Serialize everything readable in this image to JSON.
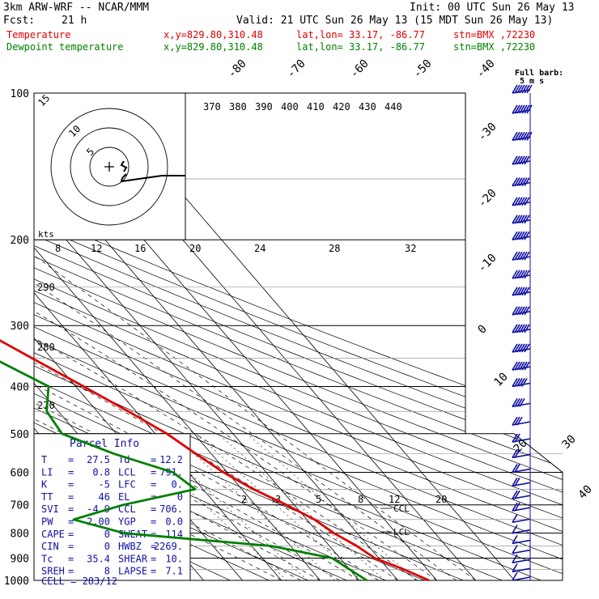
{
  "header": {
    "model": "3km ARW-WRF -- NCAR/MMM",
    "init": "Init: 00 UTC Sun 26 May 13",
    "fcst_label": "Fcst:",
    "fcst_value": "21 h",
    "valid": "Valid: 21 UTC Sun 26 May 13 (15 MDT Sun 26 May 13)",
    "temp_label": "Temperature",
    "dew_label": "Dewpoint temperature",
    "xy": "x,y=829.80,310.48",
    "latlon": "lat,lon= 33.17, -86.77",
    "stn": "stn=BMX ,72230"
  },
  "colors": {
    "temperature": "#e00000",
    "dewpoint": "#008000",
    "wind": "#1010a0"
  },
  "full_barb_text": "Full barb:",
  "full_barb_value": "5 m s",
  "hodograph": {
    "ring_labels": [
      "5",
      "10",
      "15"
    ],
    "units": "kts",
    "center_icon": "plus-icon"
  },
  "parcel_info": {
    "title": "Parcel Info",
    "rows": [
      {
        "k1": "T",
        "v1": "27.5",
        "k2": "Td",
        "v2": "12.2"
      },
      {
        "k1": "LI",
        "v1": "0.8",
        "k2": "LCL",
        "v2": "791."
      },
      {
        "k1": "K",
        "v1": "-5",
        "k2": "LFC",
        "v2": "0."
      },
      {
        "k1": "TT",
        "v1": "46",
        "k2": "EL",
        "v2": "0"
      },
      {
        "k1": "SVI",
        "v1": "-4.9",
        "k2": "CCL",
        "v2": "706."
      },
      {
        "k1": "PW",
        "v1": "2.00",
        "k2": "YGP",
        "v2": "0.0"
      },
      {
        "k1": "CAPE",
        "v1": "0",
        "k2": "SWEAT",
        "v2": "114"
      },
      {
        "k1": "CIN",
        "v1": "0",
        "k2": "HWBZ",
        "v2": "2269."
      },
      {
        "k1": "Tc",
        "v1": "35.4",
        "k2": "SHEAR",
        "v2": "10."
      },
      {
        "k1": "SREH",
        "v1": "8",
        "k2": "LAPSE",
        "v2": "7.1"
      }
    ],
    "cell": "CELL = 283/12"
  },
  "annotations": {
    "ccl": "CCL",
    "lcl": "LCL"
  },
  "chart_data": {
    "type": "skew-t",
    "title": "",
    "pressure_levels": [
      100,
      200,
      300,
      400,
      500,
      600,
      700,
      800,
      900,
      1000
    ],
    "ylim": [
      1000,
      100
    ],
    "y_scale": "log",
    "isotherm_labels": [
      "-80",
      "-70",
      "-60",
      "-50",
      "-40",
      "-30",
      "-20",
      "-10",
      "0",
      "10",
      "20",
      "30",
      "40"
    ],
    "theta_labels": [
      "370",
      "380",
      "390",
      "400",
      "410",
      "420",
      "430",
      "440"
    ],
    "theta_left_labels": [
      "290",
      "280",
      "270"
    ],
    "mixing_ratio_labels": [
      "8",
      "12",
      "16",
      "20",
      "24",
      "28",
      "32"
    ],
    "mixing_ratio_lower_labels": [
      "2",
      "3",
      "5",
      "8",
      "12",
      "20"
    ],
    "series": [
      {
        "name": "Temperature",
        "pressure": [
          1000,
          950,
          900,
          850,
          800,
          750,
          700,
          650,
          600,
          550,
          500,
          450,
          400,
          350,
          300,
          250,
          200,
          180,
          150,
          125,
          100
        ],
        "values": [
          28,
          24,
          19,
          17,
          14,
          12,
          8,
          3,
          -1,
          -4,
          -7,
          -12,
          -18,
          -25,
          -33,
          -43,
          -54,
          -58,
          -60,
          -61,
          -63
        ]
      },
      {
        "name": "Dewpoint temperature",
        "pressure": [
          1000,
          950,
          900,
          850,
          800,
          750,
          700,
          650,
          600,
          550,
          500,
          450,
          400,
          350,
          300,
          250,
          200,
          180,
          150,
          125,
          100
        ],
        "values": [
          12,
          10,
          8,
          -5,
          -40,
          -50,
          -34,
          -12,
          -14,
          -25,
          -34,
          -33,
          -27,
          -35,
          -45,
          -55,
          -64,
          -70,
          -78,
          -85,
          -92
        ]
      }
    ],
    "wind_barbs": {
      "pressure": [
        1000,
        960,
        920,
        880,
        840,
        800,
        760,
        720,
        680,
        640,
        600,
        560,
        520,
        480,
        440,
        400,
        370,
        340,
        310,
        285,
        260,
        240,
        220,
        200,
        185,
        170,
        155,
        140,
        125,
        110,
        100
      ],
      "speed_ms": [
        5,
        5,
        5,
        5,
        5,
        5,
        5,
        10,
        10,
        10,
        10,
        10,
        10,
        15,
        20,
        25,
        30,
        30,
        30,
        30,
        30,
        30,
        30,
        30,
        30,
        30,
        30,
        30,
        35,
        35,
        35
      ]
    }
  }
}
